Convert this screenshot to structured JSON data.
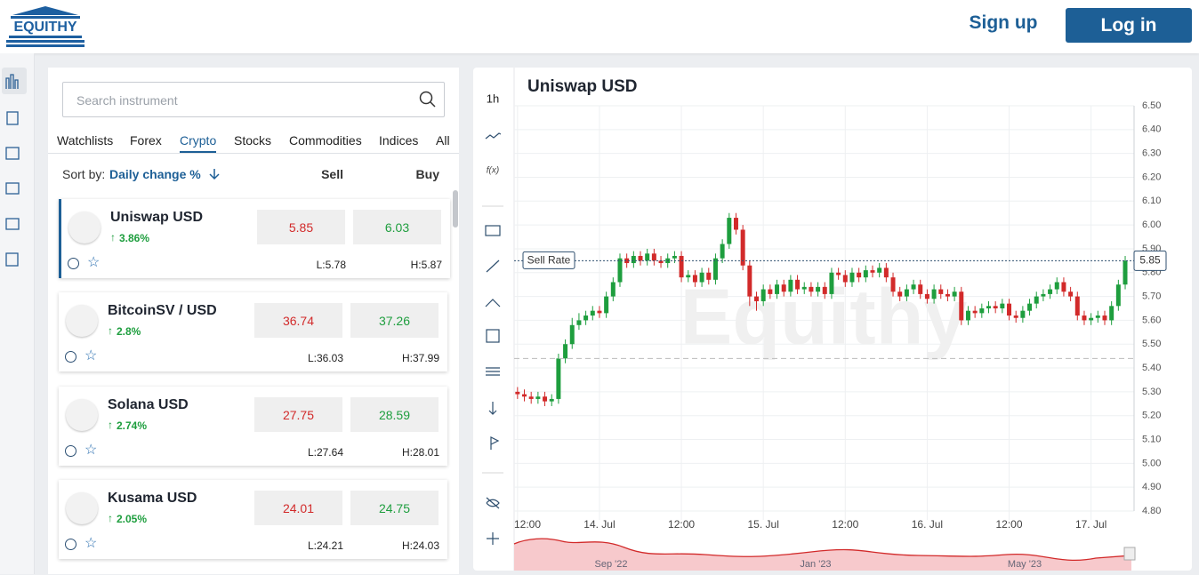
{
  "header": {
    "logo": "EQUITHY",
    "sign_up": "Sign up",
    "log_in": "Log in"
  },
  "panel": {
    "search_placeholder": "Search instrument",
    "tabs": [
      "Watchlists",
      "Forex",
      "Crypto",
      "Stocks",
      "Commodities",
      "Indices",
      "All"
    ],
    "active_tab": 2,
    "sort_label": "Sort by:",
    "sort_value": "Daily change %",
    "sell_header": "Sell",
    "buy_header": "Buy",
    "instruments": [
      {
        "name": "Uniswap USD",
        "change": "3.86%",
        "sell": "5.85",
        "buy": "6.03",
        "low": "L:5.78",
        "high": "H:5.87"
      },
      {
        "name": "BitcoinSV / USD",
        "change": "2.8%",
        "sell": "36.74",
        "buy": "37.26",
        "low": "L:36.03",
        "high": "H:37.99"
      },
      {
        "name": "Solana USD",
        "change": "2.74%",
        "sell": "27.75",
        "buy": "28.59",
        "low": "L:27.64",
        "high": "H:28.01"
      },
      {
        "name": "Kusama USD",
        "change": "2.05%",
        "sell": "24.01",
        "buy": "24.75",
        "low": "L:24.21",
        "high": "H:24.03"
      }
    ]
  },
  "toolbar": {
    "timeframe": "1h",
    "function": "f(x)"
  },
  "chart_data": {
    "type": "candlestick",
    "title": "Uniswap USD",
    "watermark": "Equithy",
    "up_color": "#1e9e3e",
    "down_color": "#d22a2a",
    "grid": true,
    "ylim": [
      4.8,
      6.5
    ],
    "yticks": [
      {
        "value": 4.8,
        "label": "4.80"
      },
      {
        "value": 4.9,
        "label": "4.90"
      },
      {
        "value": 5.0,
        "label": "5.00"
      },
      {
        "value": 5.1,
        "label": "5.10"
      },
      {
        "value": 5.2,
        "label": "5.20"
      },
      {
        "value": 5.3,
        "label": "5.30"
      },
      {
        "value": 5.4,
        "label": "5.40"
      },
      {
        "value": 5.5,
        "label": "5.50"
      },
      {
        "value": 5.6,
        "label": "5.60"
      },
      {
        "value": 5.7,
        "label": "5.70"
      },
      {
        "value": 5.8,
        "label": "5.80"
      },
      {
        "value": 5.9,
        "label": "5.90"
      },
      {
        "value": 6.0,
        "label": "6.00"
      },
      {
        "value": 6.1,
        "label": "6.10"
      },
      {
        "value": 6.2,
        "label": "6.20"
      },
      {
        "value": 6.3,
        "label": "6.30"
      },
      {
        "value": 6.4,
        "label": "6.40"
      },
      {
        "value": 6.5,
        "label": "6.50"
      }
    ],
    "xlim": [
      -0.5,
      90.3
    ],
    "xticks": [
      {
        "value": 0,
        "label": "12:00"
      },
      {
        "value": 12,
        "label": "14. Jul"
      },
      {
        "value": 24,
        "label": "12:00"
      },
      {
        "value": 36,
        "label": "15. Jul"
      },
      {
        "value": 48,
        "label": "12:00"
      },
      {
        "value": 60,
        "label": "16. Jul"
      },
      {
        "value": 72,
        "label": "12:00"
      },
      {
        "value": 84,
        "label": "17. Jul"
      }
    ],
    "open": [
      5.3,
      5.29,
      5.28,
      5.27,
      5.28,
      5.26,
      5.27,
      5.44,
      5.5,
      5.58,
      5.6,
      5.62,
      5.64,
      5.63,
      5.7,
      5.76,
      5.86,
      5.84,
      5.87,
      5.85,
      5.88,
      5.85,
      5.84,
      5.86,
      5.87,
      5.78,
      5.79,
      5.76,
      5.8,
      5.77,
      5.86,
      5.92,
      6.03,
      5.98,
      5.83,
      5.7,
      5.68,
      5.73,
      5.71,
      5.75,
      5.72,
      5.77,
      5.73,
      5.74,
      5.72,
      5.74,
      5.71,
      5.8,
      5.79,
      5.76,
      5.8,
      5.78,
      5.81,
      5.8,
      5.82,
      5.78,
      5.72,
      5.7,
      5.73,
      5.75,
      5.71,
      5.69,
      5.73,
      5.71,
      5.7,
      5.72,
      5.6,
      5.64,
      5.63,
      5.65,
      5.66,
      5.65,
      5.67,
      5.62,
      5.61,
      5.64,
      5.67,
      5.7,
      5.71,
      5.73,
      5.76,
      5.72,
      5.7,
      5.62,
      5.6,
      5.61,
      5.62,
      5.6,
      5.66,
      5.75
    ],
    "high": [
      5.32,
      5.31,
      5.3,
      5.3,
      5.3,
      5.29,
      5.46,
      5.52,
      5.61,
      5.63,
      5.64,
      5.66,
      5.66,
      5.72,
      5.78,
      5.88,
      5.88,
      5.89,
      5.89,
      5.9,
      5.9,
      5.87,
      5.88,
      5.89,
      5.89,
      5.81,
      5.81,
      5.82,
      5.82,
      5.88,
      5.94,
      6.05,
      6.05,
      6.0,
      5.85,
      5.72,
      5.75,
      5.75,
      5.77,
      5.77,
      5.79,
      5.79,
      5.76,
      5.76,
      5.76,
      5.76,
      5.82,
      5.82,
      5.81,
      5.82,
      5.82,
      5.83,
      5.83,
      5.84,
      5.84,
      5.8,
      5.74,
      5.75,
      5.77,
      5.77,
      5.73,
      5.75,
      5.75,
      5.73,
      5.74,
      5.74,
      5.66,
      5.66,
      5.67,
      5.68,
      5.68,
      5.69,
      5.69,
      5.64,
      5.66,
      5.69,
      5.72,
      5.73,
      5.75,
      5.78,
      5.78,
      5.74,
      5.72,
      5.64,
      5.63,
      5.64,
      5.64,
      5.68,
      5.77,
      5.87
    ],
    "low": [
      5.27,
      5.26,
      5.25,
      5.25,
      5.24,
      5.24,
      5.25,
      5.42,
      5.48,
      5.56,
      5.58,
      5.6,
      5.61,
      5.61,
      5.68,
      5.74,
      5.82,
      5.82,
      5.83,
      5.83,
      5.83,
      5.82,
      5.82,
      5.84,
      5.76,
      5.76,
      5.74,
      5.74,
      5.75,
      5.75,
      5.84,
      5.9,
      5.96,
      5.81,
      5.66,
      5.64,
      5.66,
      5.69,
      5.69,
      5.7,
      5.7,
      5.71,
      5.71,
      5.7,
      5.7,
      5.69,
      5.69,
      5.77,
      5.74,
      5.74,
      5.76,
      5.76,
      5.78,
      5.78,
      5.76,
      5.7,
      5.68,
      5.68,
      5.71,
      5.69,
      5.67,
      5.67,
      5.69,
      5.68,
      5.68,
      5.58,
      5.58,
      5.61,
      5.61,
      5.63,
      5.63,
      5.63,
      5.6,
      5.59,
      5.59,
      5.62,
      5.65,
      5.68,
      5.69,
      5.71,
      5.7,
      5.68,
      5.6,
      5.58,
      5.58,
      5.59,
      5.58,
      5.58,
      5.64,
      5.73
    ],
    "close": [
      5.29,
      5.28,
      5.27,
      5.28,
      5.26,
      5.27,
      5.44,
      5.5,
      5.58,
      5.6,
      5.62,
      5.64,
      5.63,
      5.7,
      5.76,
      5.86,
      5.84,
      5.87,
      5.85,
      5.88,
      5.85,
      5.84,
      5.86,
      5.87,
      5.78,
      5.79,
      5.76,
      5.8,
      5.77,
      5.86,
      5.92,
      6.03,
      5.98,
      5.83,
      5.7,
      5.68,
      5.73,
      5.71,
      5.75,
      5.72,
      5.77,
      5.73,
      5.74,
      5.72,
      5.74,
      5.71,
      5.8,
      5.79,
      5.76,
      5.8,
      5.78,
      5.81,
      5.8,
      5.82,
      5.78,
      5.72,
      5.7,
      5.73,
      5.75,
      5.71,
      5.69,
      5.73,
      5.71,
      5.7,
      5.72,
      5.6,
      5.64,
      5.63,
      5.65,
      5.66,
      5.65,
      5.67,
      5.62,
      5.61,
      5.64,
      5.67,
      5.7,
      5.71,
      5.73,
      5.76,
      5.72,
      5.7,
      5.62,
      5.6,
      5.61,
      5.62,
      5.6,
      5.66,
      5.75,
      5.85
    ],
    "price_line": {
      "name": "Sell Rate",
      "value": 5.85,
      "label": "5.85"
    },
    "reference_line": 5.44,
    "navigator_labels": [
      "Sep '22",
      "Jan '23",
      "May '23"
    ]
  }
}
